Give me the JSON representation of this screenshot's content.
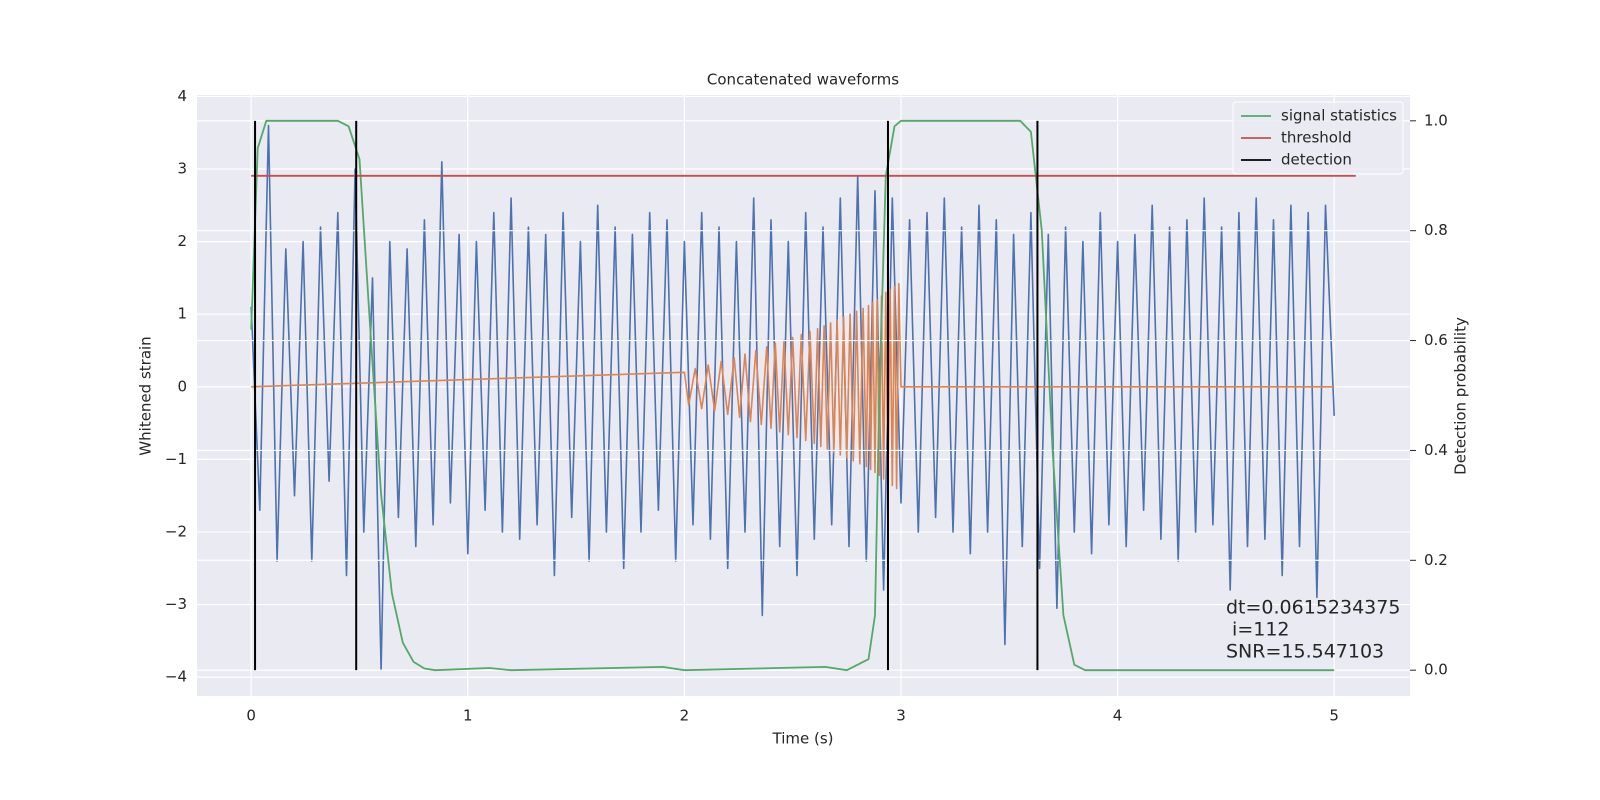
{
  "chart_data": {
    "type": "line",
    "title": "Concatenated waveforms",
    "x_label": "Time (s)",
    "y_label": "Whitened strain",
    "y2_label": "Detection probability",
    "xlim": [
      -0.25,
      5.35
    ],
    "ylim": [
      -4.26,
      4.02
    ],
    "y2lim": [
      -0.047,
      1.047
    ],
    "xticks": [
      0,
      1,
      2,
      3,
      4,
      5
    ],
    "yticks": [
      {
        "value": -4,
        "label": "−4"
      },
      {
        "value": -3,
        "label": "−3"
      },
      {
        "value": -2,
        "label": "−2"
      },
      {
        "value": -1,
        "label": "−1"
      },
      0,
      1,
      2,
      3,
      4
    ],
    "y2ticks": [
      {
        "value": 0,
        "label": "0.0"
      },
      0.2,
      0.4,
      0.6,
      0.8,
      {
        "value": 1,
        "label": "1.0"
      }
    ],
    "grid": true,
    "legend": "upper right",
    "series": [
      {
        "color": "#4c72b0",
        "x": [
          0,
          0.04,
          0.08,
          0.12,
          0.16,
          0.2,
          0.24,
          0.28,
          0.32,
          0.36,
          0.4,
          0.44,
          0.48,
          0.52,
          0.56,
          0.6,
          0.64,
          0.68,
          0.72,
          0.76,
          0.8,
          0.84,
          0.88,
          0.92,
          0.96,
          1,
          1.04,
          1.08,
          1.12,
          1.16,
          1.2,
          1.24,
          1.28,
          1.32,
          1.36,
          1.4,
          1.44,
          1.48,
          1.52,
          1.56,
          1.6,
          1.64,
          1.68,
          1.72,
          1.76,
          1.8,
          1.84,
          1.88,
          1.92,
          1.96,
          2,
          2.04,
          2.08,
          2.12,
          2.16,
          2.2,
          2.24,
          2.28,
          2.32,
          2.36,
          2.4,
          2.44,
          2.48,
          2.52,
          2.56,
          2.6,
          2.64,
          2.68,
          2.72,
          2.76,
          2.8,
          2.84,
          2.88,
          2.92,
          2.96,
          3,
          3.04,
          3.08,
          3.12,
          3.16,
          3.2,
          3.24,
          3.28,
          3.32,
          3.36,
          3.4,
          3.44,
          3.48,
          3.52,
          3.56,
          3.6,
          3.64,
          3.68,
          3.72,
          3.76,
          3.8,
          3.84,
          3.88,
          3.92,
          3.96,
          4,
          4.04,
          4.08,
          4.12,
          4.16,
          4.2,
          4.24,
          4.28,
          4.32,
          4.36,
          4.4,
          4.44,
          4.48,
          4.52,
          4.56,
          4.6,
          4.64,
          4.68,
          4.72,
          4.76,
          4.8,
          4.84,
          4.88,
          4.92,
          4.96,
          5
        ],
        "values": [
          1.1,
          -1.7,
          3.6,
          -2.4,
          1.9,
          -1.5,
          2.0,
          -2.4,
          2.2,
          -1.3,
          2.4,
          -2.6,
          3.0,
          -2.0,
          1.5,
          -3.9,
          2.0,
          -1.8,
          1.9,
          -2.2,
          2.3,
          -1.9,
          3.1,
          -1.6,
          2.1,
          -2.3,
          2.0,
          -1.7,
          2.4,
          -2.0,
          2.6,
          -2.1,
          2.2,
          -1.9,
          2.1,
          -2.6,
          2.4,
          -1.8,
          2.0,
          -2.4,
          2.5,
          -2.0,
          2.2,
          -2.5,
          2.1,
          -2.0,
          2.4,
          -1.7,
          2.3,
          -2.4,
          2.0,
          -1.9,
          2.4,
          -2.1,
          2.2,
          -2.5,
          2.0,
          -2.0,
          2.6,
          -3.15,
          2.3,
          -2.2,
          2.0,
          -2.6,
          2.4,
          -2.1,
          2.2,
          -1.9,
          2.6,
          -2.2,
          2.9,
          -2.4,
          2.7,
          -2.8,
          2.6,
          -1.6,
          2.3,
          -2.0,
          2.4,
          -1.8,
          2.6,
          -2.0,
          2.2,
          -2.3,
          2.5,
          -2.0,
          2.3,
          -3.55,
          2.1,
          -2.2,
          2.4,
          -2.5,
          2.1,
          -3.05,
          2.2,
          -2.0,
          2.0,
          -2.3,
          2.4,
          -1.9,
          2.0,
          -2.2,
          2.1,
          -1.7,
          2.5,
          -2.1,
          2.2,
          -2.4,
          2.3,
          -2.0,
          2.6,
          -1.9,
          2.2,
          -2.8,
          2.4,
          -2.2,
          2.6,
          -2.1,
          2.3,
          -2.6,
          2.5,
          -2.2,
          2.4,
          -2.9,
          2.5,
          -0.4
        ]
      },
      {
        "color": "#dd8452",
        "x": [
          0,
          2,
          2.02,
          2.05,
          2.08,
          2.11,
          2.14,
          2.17,
          2.2,
          2.23,
          2.255,
          2.28,
          2.305,
          2.33,
          2.355,
          2.38,
          2.4,
          2.42,
          2.44,
          2.46,
          2.48,
          2.5,
          2.52,
          2.54,
          2.56,
          2.58,
          2.6,
          2.615,
          2.63,
          2.645,
          2.66,
          2.675,
          2.69,
          2.705,
          2.72,
          2.735,
          2.75,
          2.765,
          2.78,
          2.795,
          2.81,
          2.825,
          2.84,
          2.85,
          2.86,
          2.87,
          2.88,
          2.89,
          2.9,
          2.91,
          2.92,
          2.93,
          2.94,
          2.95,
          2.96,
          2.97,
          2.98,
          2.99,
          3,
          5
        ],
        "values": [
          0,
          0.2,
          -0.25,
          0.25,
          -0.3,
          0.3,
          -0.33,
          0.35,
          -0.38,
          0.4,
          -0.42,
          0.45,
          -0.48,
          0.5,
          -0.52,
          0.55,
          -0.57,
          0.6,
          -0.62,
          0.64,
          -0.66,
          0.68,
          -0.7,
          0.72,
          -0.74,
          0.76,
          -0.78,
          0.8,
          -0.82,
          0.84,
          -0.86,
          0.88,
          -0.9,
          0.92,
          -0.94,
          0.96,
          -0.98,
          1.0,
          -1.02,
          1.04,
          -1.06,
          1.08,
          -1.1,
          1.12,
          -1.14,
          1.16,
          -1.18,
          1.2,
          -1.22,
          1.25,
          -1.27,
          1.3,
          -1.32,
          1.34,
          -1.36,
          1.38,
          -1.4,
          1.42,
          0,
          0
        ]
      },
      {
        "name": "signal statistics",
        "color": "#55a868",
        "axis": "y2",
        "x": [
          0,
          0.03,
          0.07,
          0.12,
          0.4,
          0.45,
          0.5,
          0.55,
          0.6,
          0.65,
          0.7,
          0.75,
          0.8,
          0.85,
          1.1,
          1.2,
          1.9,
          2.0,
          2.65,
          2.75,
          2.85,
          2.88,
          2.9,
          2.93,
          2.97,
          3.0,
          3.55,
          3.6,
          3.65,
          3.7,
          3.75,
          3.8,
          3.85,
          5
        ],
        "values": [
          0.62,
          0.95,
          1.0,
          1.0,
          1.0,
          0.99,
          0.93,
          0.62,
          0.32,
          0.14,
          0.05,
          0.015,
          0.003,
          0.0,
          0.004,
          0.0,
          0.006,
          0.0,
          0.006,
          0.0,
          0.02,
          0.1,
          0.5,
          0.9,
          0.99,
          1.0,
          1.0,
          0.98,
          0.8,
          0.4,
          0.1,
          0.01,
          0.0,
          0.0
        ]
      },
      {
        "name": "threshold",
        "color": "#c44e52",
        "axis": "y2",
        "x": [
          0,
          5.1
        ],
        "values": [
          0.9,
          0.9
        ]
      },
      {
        "name": "detection",
        "color": "#000000",
        "axis": "y2",
        "kind": "vlines",
        "x": [
          0.018,
          0.485,
          2.94,
          3.63
        ],
        "ymin": 0,
        "ymax": 1
      }
    ],
    "annotation": [
      "dt=0.0615234375",
      " i=112",
      "SNR=15.547103"
    ]
  }
}
